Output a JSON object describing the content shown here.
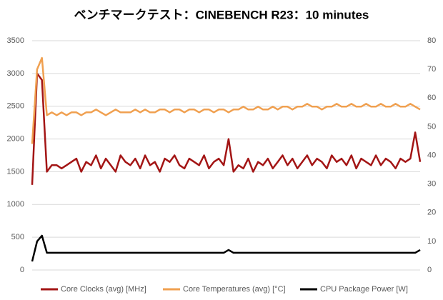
{
  "chart_data": {
    "type": "line",
    "title": "ベンチマークテスト：CINEBENCH R23：10 minutes",
    "ylim": [
      0,
      3500
    ],
    "yticks": [
      0,
      500,
      1000,
      1500,
      2000,
      2500,
      3000,
      3500
    ],
    "y2lim": [
      0,
      80
    ],
    "y2ticks": [
      0,
      10,
      20,
      30,
      40,
      50,
      60,
      70,
      80
    ],
    "grid": true,
    "legend": "bottom",
    "series": [
      {
        "name": "Core Clocks (avg) [MHz]",
        "color": "#a31515",
        "values": [
          1300,
          3000,
          2900,
          1500,
          1600,
          1600,
          1550,
          1600,
          1650,
          1700,
          1500,
          1650,
          1600,
          1750,
          1550,
          1700,
          1600,
          1500,
          1750,
          1650,
          1600,
          1700,
          1550,
          1750,
          1600,
          1650,
          1500,
          1700,
          1650,
          1750,
          1600,
          1550,
          1700,
          1650,
          1600,
          1750,
          1550,
          1650,
          1700,
          1600,
          2000,
          1500,
          1600,
          1550,
          1700,
          1500,
          1650,
          1600,
          1700,
          1550,
          1650,
          1750,
          1600,
          1700,
          1550,
          1650,
          1750,
          1600,
          1700,
          1650,
          1550,
          1750,
          1650,
          1700,
          1600,
          1750,
          1550,
          1700,
          1650,
          1600,
          1750,
          1600,
          1700,
          1650,
          1550,
          1700,
          1650,
          1700,
          2100,
          1650
        ]
      },
      {
        "name": "Core Temperatures (avg) [°C]",
        "color": "#f0a050",
        "axis": "y2",
        "values": [
          44,
          70,
          74,
          54,
          55,
          54,
          55,
          54,
          55,
          55,
          54,
          55,
          55,
          56,
          55,
          54,
          55,
          56,
          55,
          55,
          55,
          56,
          55,
          56,
          55,
          55,
          56,
          56,
          55,
          56,
          56,
          55,
          56,
          56,
          55,
          56,
          56,
          55,
          56,
          56,
          55,
          56,
          56,
          57,
          56,
          56,
          57,
          56,
          56,
          57,
          56,
          57,
          57,
          56,
          57,
          57,
          58,
          57,
          57,
          56,
          57,
          57,
          58,
          57,
          57,
          58,
          57,
          57,
          58,
          57,
          57,
          58,
          57,
          57,
          58,
          57,
          57,
          58,
          57,
          56
        ]
      },
      {
        "name": "CPU Package Power [W]",
        "color": "#000000",
        "axis": "y2",
        "values": [
          3,
          10,
          12,
          6,
          6,
          6,
          6,
          6,
          6,
          6,
          6,
          6,
          6,
          6,
          6,
          6,
          6,
          6,
          6,
          6,
          6,
          6,
          6,
          6,
          6,
          6,
          6,
          6,
          6,
          6,
          6,
          6,
          6,
          6,
          6,
          6,
          6,
          6,
          6,
          6,
          7,
          6,
          6,
          6,
          6,
          6,
          6,
          6,
          6,
          6,
          6,
          6,
          6,
          6,
          6,
          6,
          6,
          6,
          6,
          6,
          6,
          6,
          6,
          6,
          6,
          6,
          6,
          6,
          6,
          6,
          6,
          6,
          6,
          6,
          6,
          6,
          6,
          6,
          6,
          7
        ]
      }
    ]
  }
}
